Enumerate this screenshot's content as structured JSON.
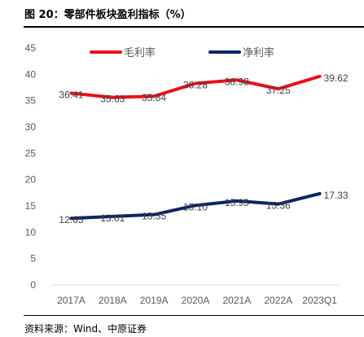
{
  "figure": {
    "title": "图 20：零部件板块盈利指标（%）",
    "source": "资料来源：Wind、中原证券"
  },
  "chart_data": {
    "type": "line",
    "categories": [
      "2017A",
      "2018A",
      "2019A",
      "2020A",
      "2021A",
      "2022A",
      "2023Q1"
    ],
    "ylim": [
      0,
      45
    ],
    "yticks": [
      0,
      5,
      10,
      15,
      20,
      25,
      30,
      35,
      40,
      45
    ],
    "grid": false,
    "legend_position": "top",
    "series": [
      {
        "name": "毛利率",
        "color": "#e8121b",
        "values": [
          36.41,
          35.63,
          35.84,
          38.28,
          38.93,
          37.25,
          39.62
        ],
        "labels": [
          "36.41",
          "35.63",
          "35.84",
          "38.28",
          "38.93",
          "37.25",
          "39.62"
        ]
      },
      {
        "name": "净利率",
        "color": "#0b2663",
        "values": [
          12.65,
          13.01,
          13.35,
          15.1,
          15.95,
          15.36,
          17.33
        ],
        "labels": [
          "12.65",
          "13.01",
          "13.35",
          "15.10",
          "15.95",
          "15.36",
          "17.33"
        ]
      }
    ]
  }
}
